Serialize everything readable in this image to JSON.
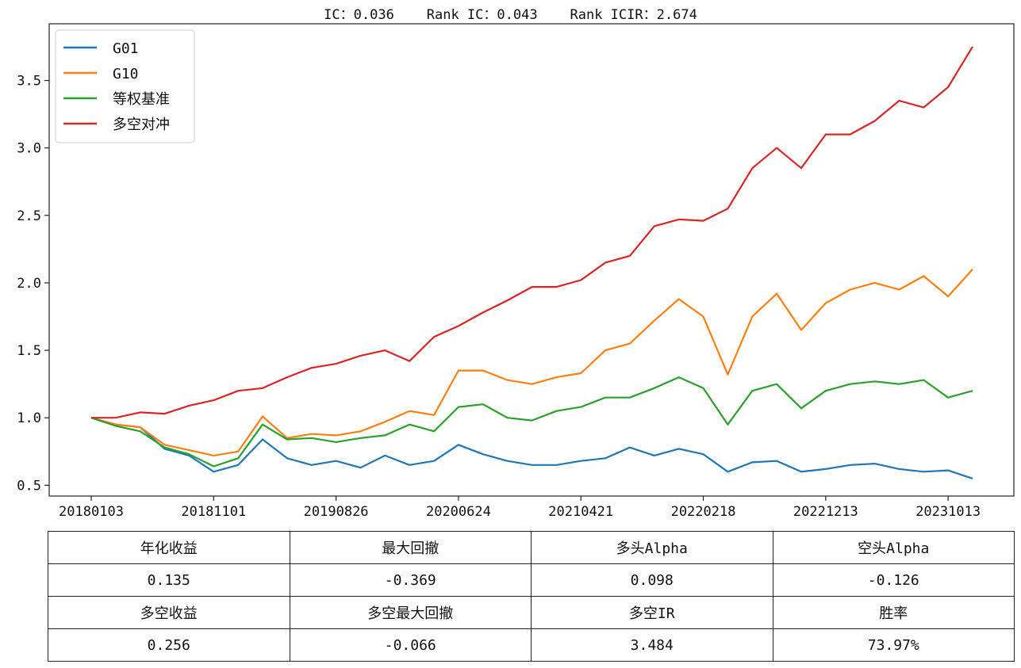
{
  "chart_data": {
    "type": "line",
    "title": "IC：0.036    Rank IC：0.043    Rank ICIR：2.674",
    "xlabel": "",
    "ylabel": "",
    "ylim": [
      0.42,
      3.92
    ],
    "y_ticks": [
      0.5,
      1.0,
      1.5,
      2.0,
      2.5,
      3.0,
      3.5
    ],
    "y_tick_labels": [
      "0.5",
      "1.0",
      "1.5",
      "2.0",
      "2.5",
      "3.0",
      "3.5"
    ],
    "x_tick_labels": [
      "20180103",
      "20181101",
      "20190826",
      "20200624",
      "20210421",
      "20220218",
      "20221213",
      "20231013"
    ],
    "x": [
      "20180103",
      "20180301",
      "20180501",
      "20180701",
      "20180901",
      "20181101",
      "20190101",
      "20190301",
      "20190501",
      "20190701",
      "20190826",
      "20191101",
      "20200101",
      "20200301",
      "20200501",
      "20200624",
      "20200801",
      "20201001",
      "20201201",
      "20210201",
      "20210421",
      "20210601",
      "20210801",
      "20211001",
      "20211201",
      "20220218",
      "20220401",
      "20220601",
      "20220801",
      "20221001",
      "20221213",
      "20230201",
      "20230401",
      "20230601",
      "20230801",
      "20231013",
      "20231231"
    ],
    "legend_position": "top-left",
    "grid": false,
    "series": [
      {
        "name": "G01",
        "color": "#1f77b4",
        "values": [
          1.0,
          0.95,
          0.93,
          0.77,
          0.72,
          0.6,
          0.65,
          0.84,
          0.7,
          0.65,
          0.68,
          0.63,
          0.72,
          0.65,
          0.68,
          0.8,
          0.73,
          0.68,
          0.65,
          0.65,
          0.68,
          0.7,
          0.78,
          0.72,
          0.77,
          0.73,
          0.6,
          0.67,
          0.68,
          0.6,
          0.62,
          0.65,
          0.66,
          0.62,
          0.6,
          0.61,
          0.55
        ]
      },
      {
        "name": "G10",
        "color": "#ff7f0e",
        "values": [
          1.0,
          0.95,
          0.93,
          0.8,
          0.76,
          0.72,
          0.75,
          1.01,
          0.85,
          0.88,
          0.87,
          0.9,
          0.97,
          1.05,
          1.02,
          1.35,
          1.35,
          1.28,
          1.25,
          1.3,
          1.33,
          1.5,
          1.55,
          1.72,
          1.88,
          1.75,
          1.32,
          1.75,
          1.92,
          1.65,
          1.85,
          1.95,
          2.0,
          1.95,
          2.05,
          1.9,
          2.1
        ]
      },
      {
        "name": "等权基准",
        "color": "#2ca02c",
        "values": [
          1.0,
          0.94,
          0.9,
          0.78,
          0.73,
          0.64,
          0.7,
          0.95,
          0.84,
          0.85,
          0.82,
          0.85,
          0.87,
          0.95,
          0.9,
          1.08,
          1.1,
          1.0,
          0.98,
          1.05,
          1.08,
          1.15,
          1.15,
          1.22,
          1.3,
          1.22,
          0.95,
          1.2,
          1.25,
          1.07,
          1.2,
          1.25,
          1.27,
          1.25,
          1.28,
          1.15,
          1.2
        ]
      },
      {
        "name": "多空对冲",
        "color": "#d62728",
        "values": [
          1.0,
          1.0,
          1.04,
          1.03,
          1.09,
          1.13,
          1.2,
          1.22,
          1.3,
          1.37,
          1.4,
          1.46,
          1.5,
          1.42,
          1.6,
          1.68,
          1.78,
          1.87,
          1.97,
          1.97,
          2.02,
          2.15,
          2.2,
          2.42,
          2.47,
          2.46,
          2.55,
          2.85,
          3.0,
          2.85,
          3.1,
          3.1,
          3.2,
          3.35,
          3.3,
          3.45,
          3.75
        ]
      }
    ]
  },
  "stats": {
    "rows": [
      [
        "年化收益",
        "最大回撤",
        "多头Alpha",
        "空头Alpha"
      ],
      [
        "0.135",
        "-0.369",
        "0.098",
        "-0.126"
      ],
      [
        "多空收益",
        "多空最大回撤",
        "多空IR",
        "胜率"
      ],
      [
        "0.256",
        "-0.066",
        "3.484",
        "73.97%"
      ]
    ]
  }
}
